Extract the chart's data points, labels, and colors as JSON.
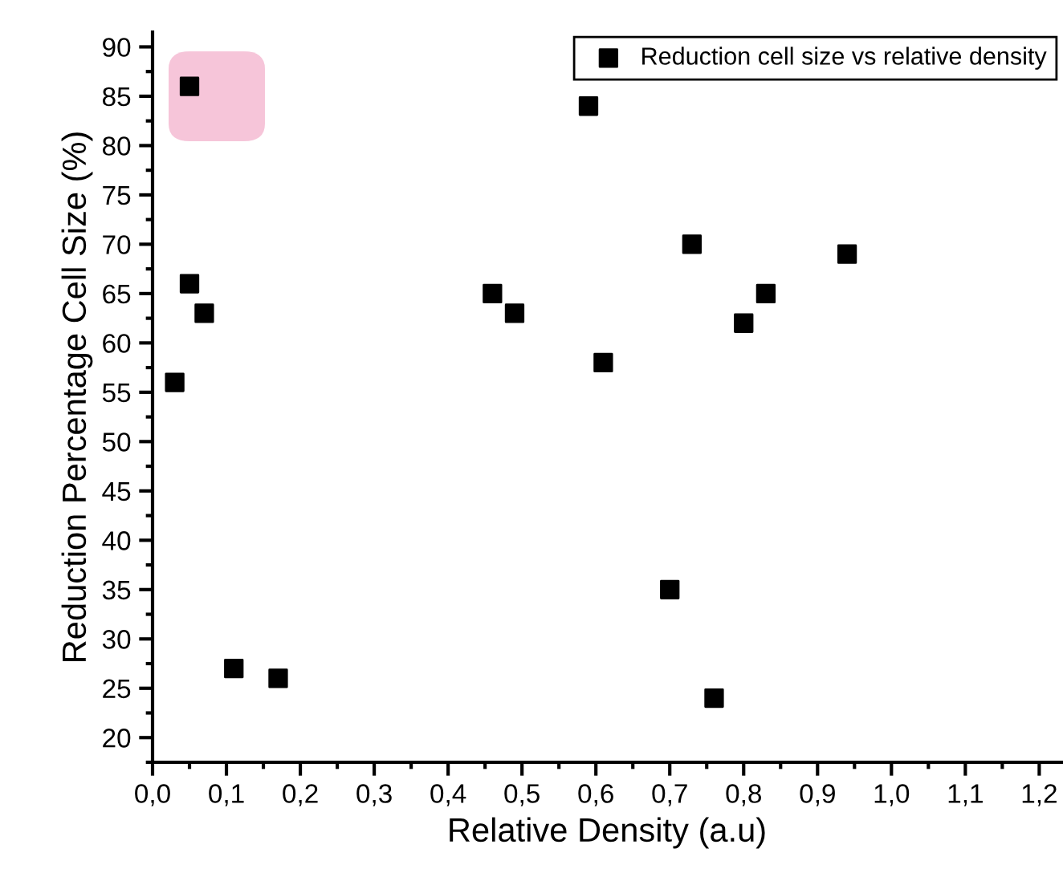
{
  "chart_data": {
    "type": "scatter",
    "xlabel": "Relative Density (a.u)",
    "ylabel": "Reduction Percentage Cell Size (%)",
    "x": [
      0.03,
      0.05,
      0.07,
      0.05,
      0.11,
      0.17,
      0.46,
      0.49,
      0.59,
      0.61,
      0.73,
      0.7,
      0.76,
      0.8,
      0.83,
      0.94
    ],
    "series": [
      {
        "name": "Reduction cell size vs relative density",
        "color": "#000000",
        "values": [
          56,
          66,
          63,
          86,
          27,
          26,
          65,
          63,
          84,
          58,
          70,
          35,
          24,
          62,
          65,
          69
        ]
      }
    ],
    "marker": "square",
    "legend": "top right",
    "grid": false,
    "xlim": [
      0,
      1.23
    ],
    "ylim": [
      17.5,
      91.5
    ],
    "xticks": [
      {
        "value": 0,
        "label": "0,0"
      },
      {
        "value": 0.1,
        "label": "0,1"
      },
      {
        "value": 0.2,
        "label": "0,2"
      },
      {
        "value": 0.3,
        "label": "0,3"
      },
      {
        "value": 0.4,
        "label": "0,4"
      },
      {
        "value": 0.5,
        "label": "0,5"
      },
      {
        "value": 0.6,
        "label": "0,6"
      },
      {
        "value": 0.7,
        "label": "0,7"
      },
      {
        "value": 0.8,
        "label": "0,8"
      },
      {
        "value": 0.9,
        "label": "0,9"
      },
      {
        "value": 1.0,
        "label": "1,0"
      },
      {
        "value": 1.1,
        "label": "1,1"
      },
      {
        "value": 1.2,
        "label": "1,2"
      }
    ],
    "yticks": [
      20,
      25,
      30,
      35,
      40,
      45,
      50,
      55,
      60,
      65,
      70,
      75,
      80,
      85,
      90
    ]
  }
}
